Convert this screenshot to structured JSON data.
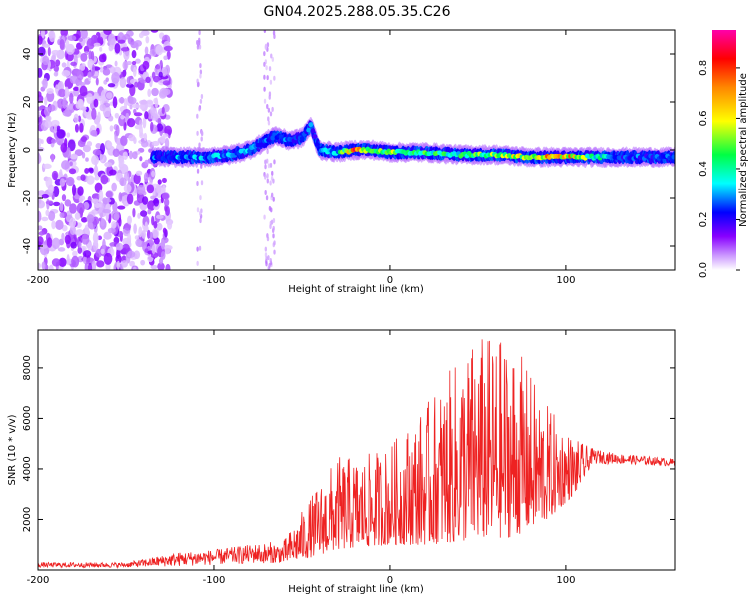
{
  "title": "GN04.2025.288.05.35.C26",
  "chart_data": [
    {
      "type": "heatmap",
      "xlabel": "Height of straight line (km)",
      "ylabel": "Frequency (Hz)",
      "xlim": [
        -200,
        162
      ],
      "ylim": [
        -50,
        50
      ],
      "x_ticks": [
        -200,
        -100,
        0,
        100
      ],
      "y_ticks": [
        -40,
        -20,
        0,
        20,
        40
      ],
      "x_tick_labels": [
        "-200",
        "-100",
        "0",
        "100"
      ],
      "y_tick_labels": [
        "-40",
        "-20",
        "0",
        "20",
        "40"
      ],
      "colorbar": {
        "label": "Normalized spectral amplitude",
        "range": [
          0.0,
          0.95
        ],
        "ticks": [
          0.0,
          0.2,
          0.4,
          0.6,
          0.8
        ],
        "tick_labels": [
          "0.0",
          "0.2",
          "0.4",
          "0.6",
          "0.8"
        ],
        "colormap": [
          "#ffffff",
          "#8800ff",
          "#0000ff",
          "#00ffff",
          "#00ff00",
          "#ffff00",
          "#ff8800",
          "#ff0000",
          "#ff00aa"
        ]
      },
      "noise_region": [
        -200,
        -125
      ],
      "signal_track": [
        {
          "x": -135,
          "freq": -3,
          "amp": 0.3
        },
        {
          "x": -120,
          "freq": -3,
          "amp": 0.35
        },
        {
          "x": -105,
          "freq": -3,
          "amp": 0.35
        },
        {
          "x": -90,
          "freq": -2,
          "amp": 0.4
        },
        {
          "x": -80,
          "freq": 0,
          "amp": 0.35
        },
        {
          "x": -72,
          "freq": 3,
          "amp": 0.3
        },
        {
          "x": -65,
          "freq": 6,
          "amp": 0.35
        },
        {
          "x": -58,
          "freq": 4,
          "amp": 0.3
        },
        {
          "x": -50,
          "freq": 5,
          "amp": 0.3
        },
        {
          "x": -45,
          "freq": 10,
          "amp": 0.3
        },
        {
          "x": -40,
          "freq": 0,
          "amp": 0.3
        },
        {
          "x": -30,
          "freq": -1,
          "amp": 0.4
        },
        {
          "x": -20,
          "freq": 0,
          "amp": 0.85
        },
        {
          "x": -10,
          "freq": 0,
          "amp": 0.6
        },
        {
          "x": 0,
          "freq": -1,
          "amp": 0.6
        },
        {
          "x": 20,
          "freq": -1,
          "amp": 0.5
        },
        {
          "x": 40,
          "freq": -2,
          "amp": 0.5
        },
        {
          "x": 60,
          "freq": -2,
          "amp": 0.6
        },
        {
          "x": 80,
          "freq": -3,
          "amp": 0.7
        },
        {
          "x": 100,
          "freq": -3,
          "amp": 0.8
        },
        {
          "x": 115,
          "freq": -3,
          "amp": 0.5
        },
        {
          "x": 130,
          "freq": -3,
          "amp": 0.3
        },
        {
          "x": 162,
          "freq": -3,
          "amp": 0.3
        }
      ]
    },
    {
      "type": "line",
      "xlabel": "Height of straight line (km)",
      "ylabel": "SNR (10 * v/v)",
      "xlim": [
        -200,
        162
      ],
      "ylim": [
        0,
        9500
      ],
      "x_ticks": [
        -200,
        -100,
        0,
        100
      ],
      "y_ticks": [
        2000,
        4000,
        6000,
        8000
      ],
      "x_tick_labels": [
        "-200",
        "-100",
        "0",
        "100"
      ],
      "y_tick_labels": [
        "2000",
        "4000",
        "6000",
        "8000"
      ],
      "series": [
        {
          "name": "SNR",
          "color": "#ee2222",
          "envelope": [
            {
              "x": -200,
              "base": 100,
              "peak": 300
            },
            {
              "x": -150,
              "base": 100,
              "peak": 300
            },
            {
              "x": -120,
              "base": 150,
              "peak": 700
            },
            {
              "x": -100,
              "base": 200,
              "peak": 800
            },
            {
              "x": -80,
              "base": 250,
              "peak": 1000
            },
            {
              "x": -60,
              "base": 300,
              "peak": 1200
            },
            {
              "x": -45,
              "base": 500,
              "peak": 2900
            },
            {
              "x": -30,
              "base": 800,
              "peak": 4500
            },
            {
              "x": -15,
              "base": 900,
              "peak": 4500
            },
            {
              "x": 0,
              "base": 1000,
              "peak": 5000
            },
            {
              "x": 20,
              "base": 1000,
              "peak": 6500
            },
            {
              "x": 40,
              "base": 1100,
              "peak": 8500
            },
            {
              "x": 50,
              "base": 1200,
              "peak": 9400
            },
            {
              "x": 70,
              "base": 1300,
              "peak": 9100
            },
            {
              "x": 90,
              "base": 2000,
              "peak": 6500
            },
            {
              "x": 105,
              "base": 3000,
              "peak": 5200
            },
            {
              "x": 115,
              "base": 4200,
              "peak": 4800
            },
            {
              "x": 130,
              "base": 4200,
              "peak": 4600
            },
            {
              "x": 162,
              "base": 4100,
              "peak": 4400
            }
          ]
        }
      ]
    }
  ]
}
